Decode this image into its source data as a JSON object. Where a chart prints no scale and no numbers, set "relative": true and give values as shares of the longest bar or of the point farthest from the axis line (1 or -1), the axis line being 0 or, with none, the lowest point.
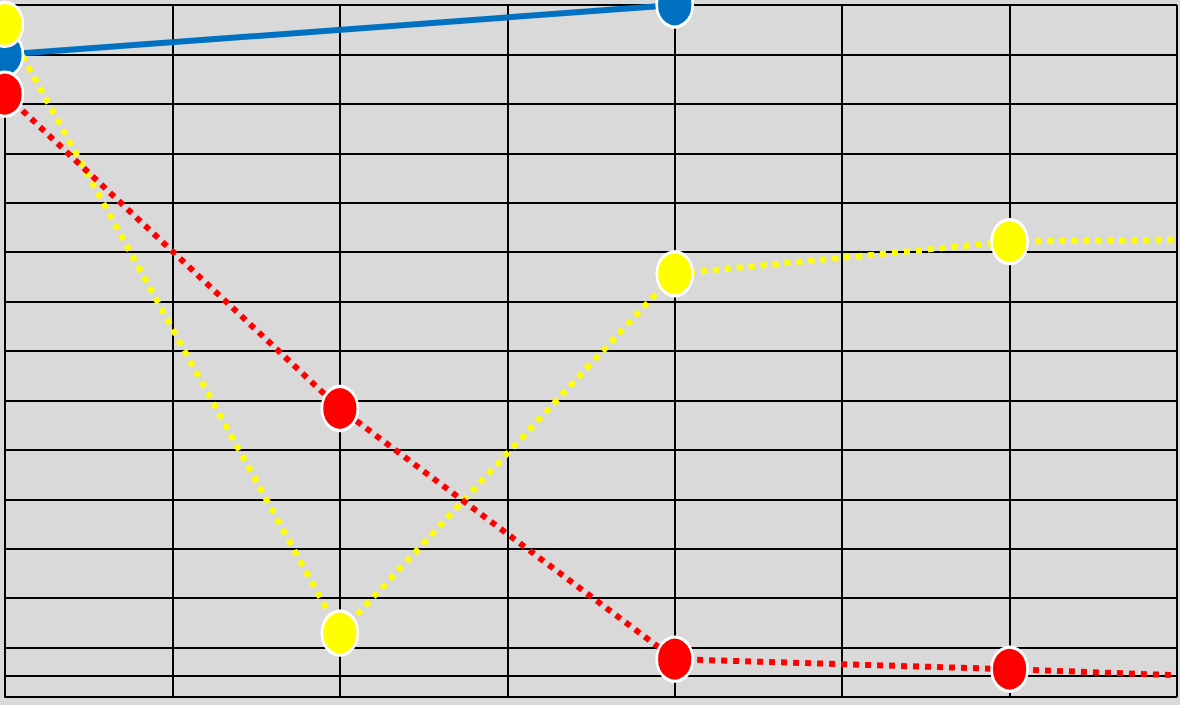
{
  "chart_data": {
    "type": "line",
    "relative": true,
    "grid": true,
    "marker": "circle",
    "categories": [
      null,
      null,
      null,
      null,
      null,
      null,
      null,
      null
    ],
    "series": [
      {
        "color": "#0070c0",
        "line_style": "solid",
        "values": [
          0.926,
          null,
          null,
          null,
          1,
          null,
          null,
          null
        ]
      },
      {
        "color": "#ffff00",
        "line_style": "dotted",
        "values": [
          0.971,
          null,
          0.063,
          null,
          0.599,
          null,
          0.647,
          0.65
        ]
      },
      {
        "color": "#ff0000",
        "line_style": "dotted",
        "values": [
          0.867,
          null,
          0.398,
          null,
          0.024,
          null,
          0.009,
          0
        ]
      }
    ]
  }
}
